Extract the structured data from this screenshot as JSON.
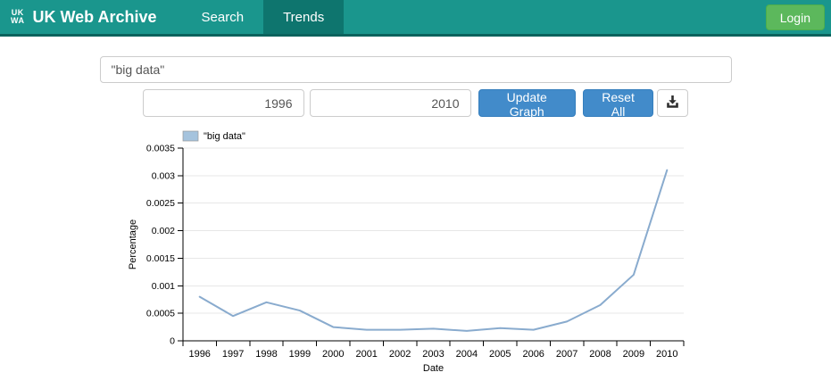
{
  "header": {
    "logo_line1": "UK",
    "logo_line2": "WA",
    "brand": "UK Web Archive",
    "nav": [
      {
        "label": "Search",
        "active": false
      },
      {
        "label": "Trends",
        "active": true
      }
    ],
    "login_label": "Login",
    "colors": {
      "navbar": "#1a968d",
      "navbar_active": "#0e756e",
      "login": "#5cb85c"
    }
  },
  "search": {
    "query_value": "\"big data\""
  },
  "controls": {
    "start_year": "1996",
    "end_year": "2010",
    "update_label": "Update Graph",
    "reset_label": "Reset All",
    "download_icon": "download-icon",
    "button_color": "#428bca"
  },
  "chart_data": {
    "type": "line",
    "legend": [
      "\"big data\""
    ],
    "x": [
      1996,
      1997,
      1998,
      1999,
      2000,
      2001,
      2002,
      2003,
      2004,
      2005,
      2006,
      2007,
      2008,
      2009,
      2010
    ],
    "series": [
      {
        "name": "\"big data\"",
        "values": [
          0.0008,
          0.00045,
          0.0007,
          0.00055,
          0.00025,
          0.0002,
          0.0002,
          0.00022,
          0.00018,
          0.00023,
          0.0002,
          0.00035,
          0.00065,
          0.0012,
          0.0031
        ]
      }
    ],
    "xlabel": "Date",
    "ylabel": "Percentage",
    "ylim": [
      0,
      0.0035
    ],
    "yticks": [
      0,
      0.0005,
      0.001,
      0.0015,
      0.002,
      0.0025,
      0.003,
      0.0035
    ],
    "grid": true,
    "legend_position": "top-left",
    "line_color": "#89abce",
    "legend_fill": "#a5c3dd",
    "grid_color": "#e7e7e7"
  }
}
